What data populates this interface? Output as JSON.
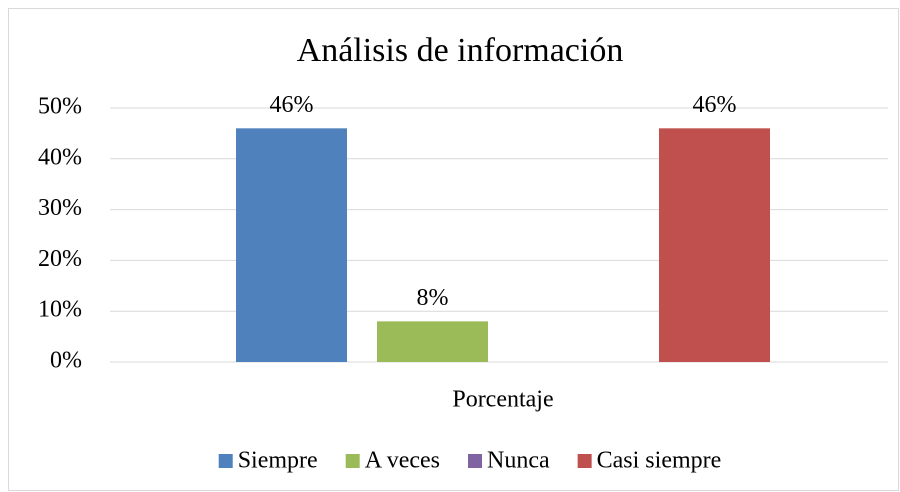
{
  "chart_data": {
    "type": "bar",
    "title": "Análisis de información",
    "categories": [
      "Porcentaje"
    ],
    "series": [
      {
        "name": "Siempre",
        "color": "#4f81bd",
        "values": [
          46
        ],
        "value_labels": [
          "46%"
        ]
      },
      {
        "name": "A veces",
        "color": "#9bbb59",
        "values": [
          8
        ],
        "value_labels": [
          "8%"
        ]
      },
      {
        "name": "Nunca",
        "color": "#8064a2",
        "values": [
          0
        ]
      },
      {
        "name": "Casi siempre",
        "color": "#c0504d",
        "values": [
          46
        ],
        "value_labels": [
          "46%"
        ]
      }
    ],
    "ylim": [
      0,
      50
    ],
    "yticks": [
      {
        "value": 0,
        "label": "0%"
      },
      {
        "value": 10,
        "label": "10%"
      },
      {
        "value": 20,
        "label": "20%"
      },
      {
        "value": 30,
        "label": "30%"
      },
      {
        "value": 40,
        "label": "40%"
      },
      {
        "value": 50,
        "label": "50%"
      }
    ],
    "grid": true,
    "legend": "bottom"
  }
}
